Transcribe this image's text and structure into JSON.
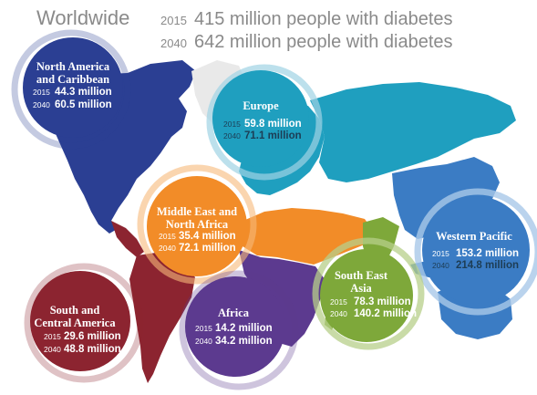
{
  "title": {
    "worldwide": "Worldwide",
    "line1_year": "2015",
    "line1_text": "415 million people with diabetes",
    "line2_year": "2040",
    "line2_text": "642 million people with diabetes"
  },
  "regions": [
    {
      "name_lines": [
        "North America",
        "and Caribbean"
      ],
      "y2015": "2015",
      "v2015": "44.3 million",
      "y2040": "2040",
      "v2040": "60.5 million",
      "color": "#2b3f93"
    },
    {
      "name_lines": [
        "Europe"
      ],
      "y2015": "2015",
      "v2015": "59.8 million",
      "y2040": "2040",
      "v2040": "71.1 million",
      "color": "#1f9fbf"
    },
    {
      "name_lines": [
        "Middle East and",
        "North Africa"
      ],
      "y2015": "2015",
      "v2015": "35.4 million",
      "y2040": "2040",
      "v2040": "72.1 million",
      "color": "#f28c28"
    },
    {
      "name_lines": [
        "Western Pacific"
      ],
      "y2015": "2015",
      "v2015": "153.2 million",
      "y2040": "2040",
      "v2040": "214.8 million",
      "color": "#3b7cc4"
    },
    {
      "name_lines": [
        "South East",
        "Asia"
      ],
      "y2015": "2015",
      "v2015": "78.3 million",
      "y2040": "2040",
      "v2040": "140.2 million",
      "color": "#7ea83a"
    },
    {
      "name_lines": [
        "Africa"
      ],
      "y2015": "2015",
      "v2015": "14.2 million",
      "y2040": "2040",
      "v2040": "34.2 million",
      "color": "#5c3a8f"
    },
    {
      "name_lines": [
        "South and",
        "Central America"
      ],
      "y2015": "2015",
      "v2015": "29.6 million",
      "y2040": "2040",
      "v2040": "48.8 million",
      "color": "#8c2430"
    }
  ]
}
